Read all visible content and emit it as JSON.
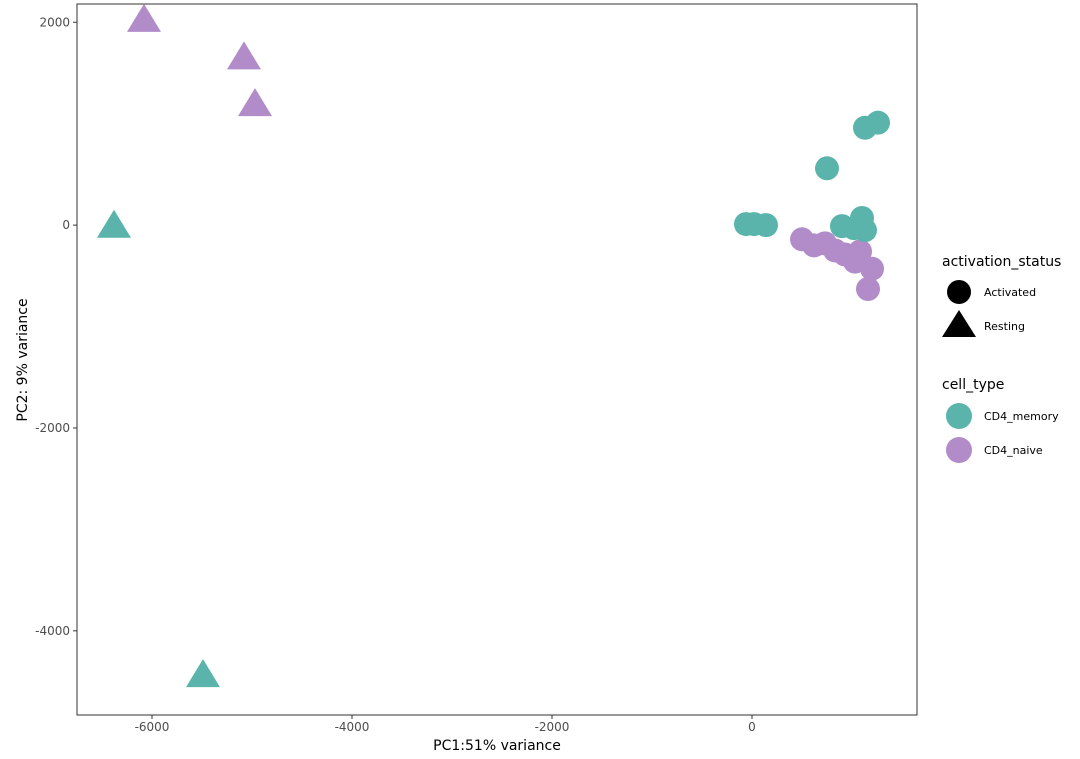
{
  "chart_data": {
    "type": "scatter",
    "title": "",
    "xlabel": "PC1:51% variance",
    "ylabel": "PC2: 9% variance",
    "xlim": [
      -6750,
      1650
    ],
    "ylim": [
      -4830,
      2180
    ],
    "xticks": [
      -6000,
      -4000,
      -2000,
      0
    ],
    "yticks": [
      -4000,
      -2000,
      0,
      2000
    ],
    "grid": false,
    "legend_position": "right",
    "legend": {
      "shape": {
        "title": "activation_status",
        "items": [
          {
            "label": "Activated",
            "shape": "circle"
          },
          {
            "label": "Resting",
            "shape": "triangle"
          }
        ]
      },
      "color": {
        "title": "cell_type",
        "items": [
          {
            "label": "CD4_memory",
            "color": "#5ab4ac"
          },
          {
            "label": "CD4_naive",
            "color": "#b18cc8"
          }
        ]
      }
    },
    "points": [
      {
        "x": -6080,
        "y": 2010,
        "cell_type": "CD4_naive",
        "activation_status": "Resting"
      },
      {
        "x": -5080,
        "y": 1640,
        "cell_type": "CD4_naive",
        "activation_status": "Resting"
      },
      {
        "x": -4970,
        "y": 1180,
        "cell_type": "CD4_naive",
        "activation_status": "Resting"
      },
      {
        "x": -6380,
        "y": -20,
        "cell_type": "CD4_memory",
        "activation_status": "Resting"
      },
      {
        "x": -5490,
        "y": -4450,
        "cell_type": "CD4_memory",
        "activation_status": "Resting"
      },
      {
        "x": 1130,
        "y": 960,
        "cell_type": "CD4_memory",
        "activation_status": "Activated"
      },
      {
        "x": 1260,
        "y": 1010,
        "cell_type": "CD4_memory",
        "activation_status": "Activated"
      },
      {
        "x": 750,
        "y": 560,
        "cell_type": "CD4_memory",
        "activation_status": "Activated"
      },
      {
        "x": -60,
        "y": 10,
        "cell_type": "CD4_memory",
        "activation_status": "Activated"
      },
      {
        "x": 20,
        "y": 10,
        "cell_type": "CD4_memory",
        "activation_status": "Activated"
      },
      {
        "x": 140,
        "y": 0,
        "cell_type": "CD4_memory",
        "activation_status": "Activated"
      },
      {
        "x": 500,
        "y": -140,
        "cell_type": "CD4_naive",
        "activation_status": "Activated"
      },
      {
        "x": 620,
        "y": -200,
        "cell_type": "CD4_naive",
        "activation_status": "Activated"
      },
      {
        "x": 730,
        "y": -180,
        "cell_type": "CD4_naive",
        "activation_status": "Activated"
      },
      {
        "x": 830,
        "y": -250,
        "cell_type": "CD4_naive",
        "activation_status": "Activated"
      },
      {
        "x": 930,
        "y": -290,
        "cell_type": "CD4_naive",
        "activation_status": "Activated"
      },
      {
        "x": 1030,
        "y": -360,
        "cell_type": "CD4_naive",
        "activation_status": "Activated"
      },
      {
        "x": 1080,
        "y": -260,
        "cell_type": "CD4_naive",
        "activation_status": "Activated"
      },
      {
        "x": 1200,
        "y": -430,
        "cell_type": "CD4_naive",
        "activation_status": "Activated"
      },
      {
        "x": 1160,
        "y": -630,
        "cell_type": "CD4_naive",
        "activation_status": "Activated"
      },
      {
        "x": 900,
        "y": -10,
        "cell_type": "CD4_memory",
        "activation_status": "Activated"
      },
      {
        "x": 1020,
        "y": -30,
        "cell_type": "CD4_memory",
        "activation_status": "Activated"
      },
      {
        "x": 1100,
        "y": 70,
        "cell_type": "CD4_memory",
        "activation_status": "Activated"
      },
      {
        "x": 1130,
        "y": -50,
        "cell_type": "CD4_memory",
        "activation_status": "Activated"
      }
    ]
  }
}
